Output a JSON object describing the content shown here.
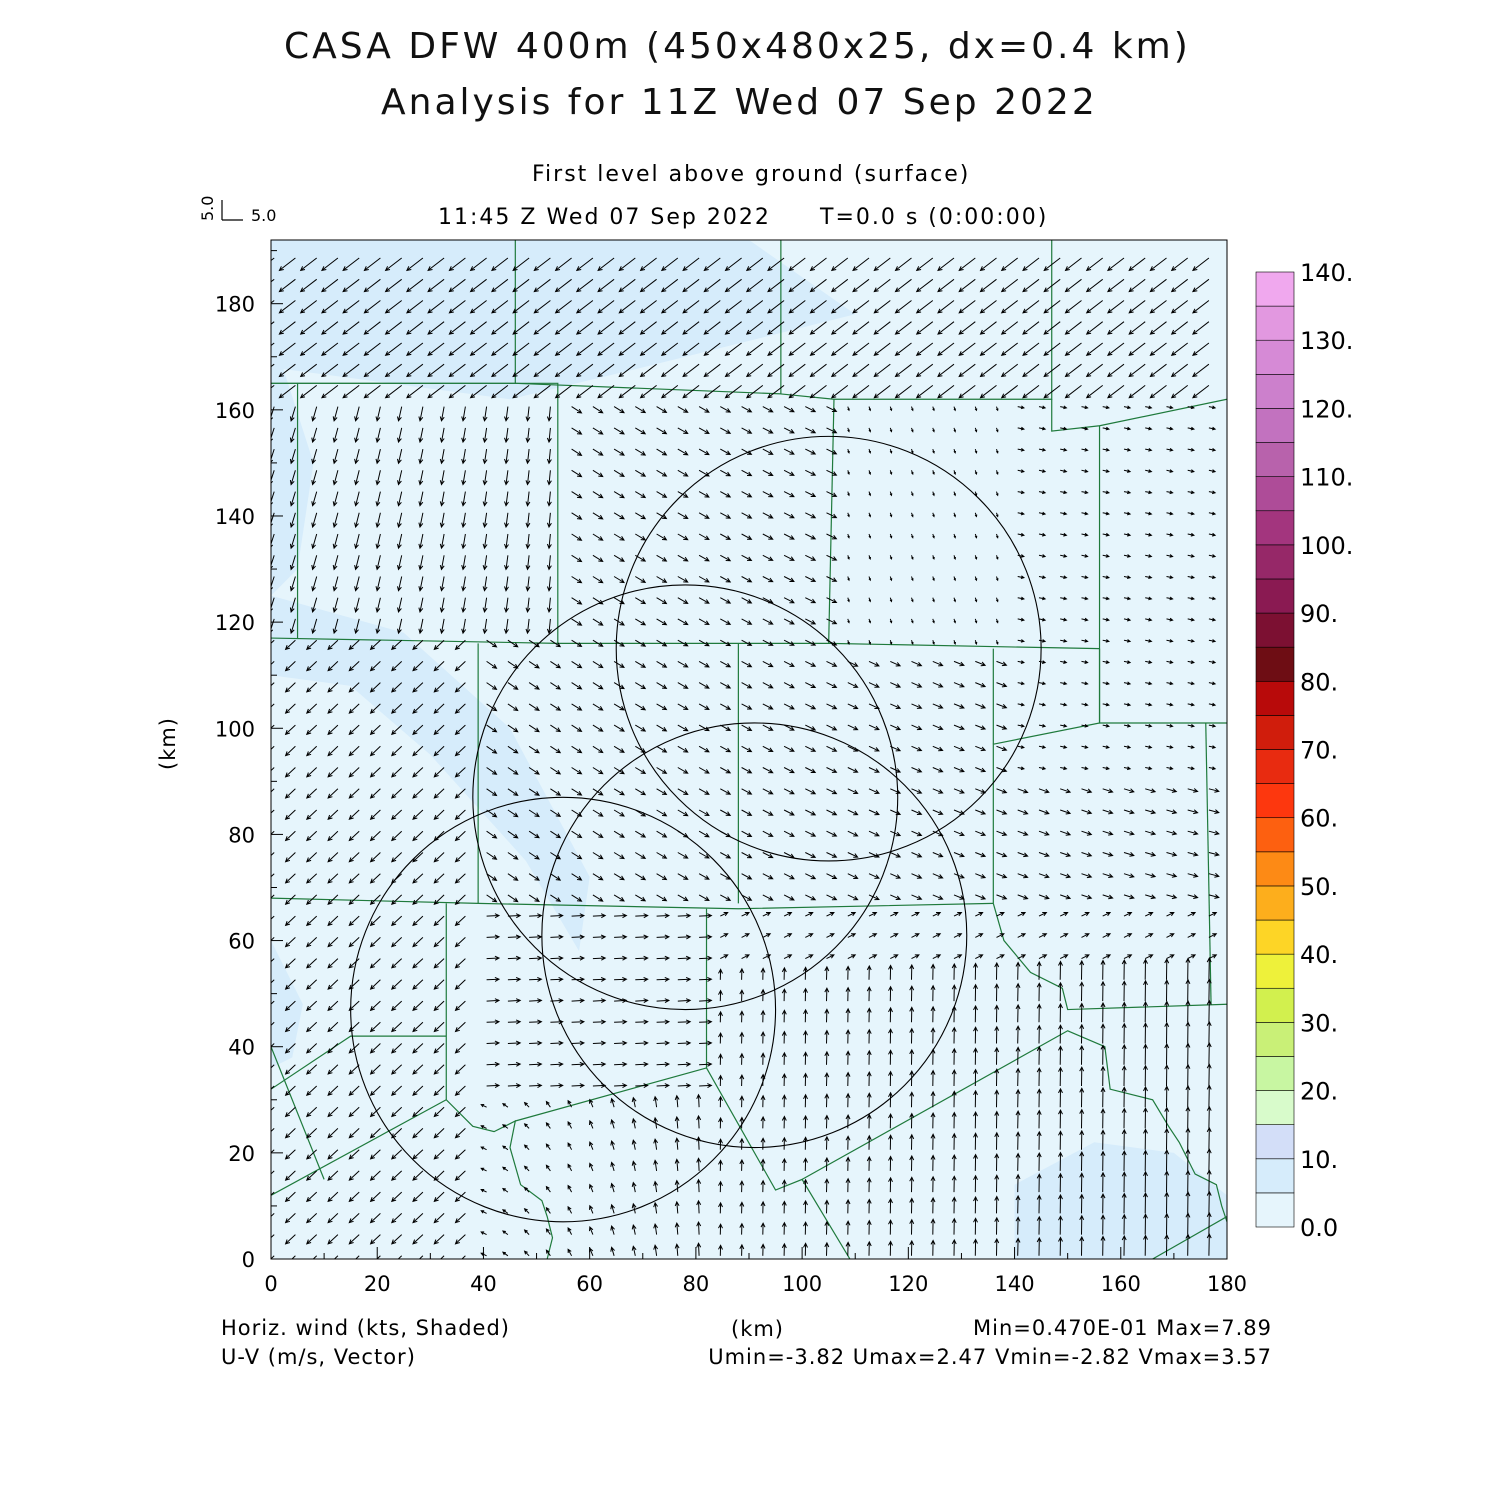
{
  "header": {
    "title_line1": "CASA DFW 400m (450x480x25, dx=0.4 km)",
    "title_line2": "Analysis for 11Z Wed 07 Sep 2022",
    "level": "First level above ground (surface)",
    "time": "11:45 Z Wed 07 Sep 2022",
    "elapsed": "T=0.0 s (0:00:00)",
    "ref_vector_u": "5.0",
    "ref_vector_v": "5.0"
  },
  "footer": {
    "left_line1": "Horiz. wind (kts, Shaded)",
    "left_line2": "U-V (m/s, Vector)",
    "center": "(km)",
    "right_line1": "Min=0.470E-01 Max=7.89",
    "right_line2": "Umin=-3.82 Umax=2.47 Vmin=-2.82 Vmax=3.57"
  },
  "chart_data": {
    "type": "heatmap",
    "xlabel": "(km)",
    "ylabel": "(km)",
    "xlim": [
      0,
      180
    ],
    "ylim": [
      0,
      192
    ],
    "x_ticks": [
      0,
      20,
      40,
      60,
      80,
      100,
      120,
      140,
      160,
      180
    ],
    "y_ticks": [
      0,
      20,
      40,
      60,
      80,
      100,
      120,
      140,
      160,
      180
    ],
    "colorbar": {
      "levels": [
        0,
        5,
        10,
        15,
        20,
        25,
        30,
        35,
        40,
        45,
        50,
        55,
        60,
        65,
        70,
        75,
        80,
        85,
        90,
        95,
        100,
        105,
        110,
        115,
        120,
        125,
        130,
        135,
        140
      ],
      "labels": [
        "0.0",
        "10.",
        "20.",
        "30.",
        "40.",
        "50.",
        "60.",
        "70.",
        "80.",
        "90.",
        "100.",
        "110.",
        "120.",
        "130.",
        "140."
      ],
      "colors": [
        "#e6f5fc",
        "#d6ecfb",
        "#d3def8",
        "#d8fbcb",
        "#c8f6a2",
        "#c9f077",
        "#d2f04e",
        "#eef13a",
        "#fdd526",
        "#fdae1c",
        "#fd8a15",
        "#fd6010",
        "#fd370e",
        "#e82b10",
        "#d01d0c",
        "#b80a0a",
        "#6e0d14",
        "#7c1032",
        "#8a1a52",
        "#962868",
        "#a3357e",
        "#ae4c98",
        "#b862ac",
        "#c272bf",
        "#cc80cc",
        "#d68ad6",
        "#e298e0",
        "#f0a8ee"
      ]
    },
    "field": {
      "name": "Horiz. wind (kts, Shaded)",
      "min": 0.047,
      "max": 7.89,
      "background_color": "#e6f5fc",
      "enhanced_regions": [
        {
          "color": "#d6ecfb",
          "points": [
            [
              0,
              192
            ],
            [
              90,
              192
            ],
            [
              110,
              178
            ],
            [
              70,
              168
            ],
            [
              45,
              162
            ],
            [
              0,
              168
            ]
          ]
        },
        {
          "color": "#d6ecfb",
          "points": [
            [
              0,
              125
            ],
            [
              25,
              118
            ],
            [
              45,
              100
            ],
            [
              60,
              72
            ],
            [
              58,
              58
            ],
            [
              48,
              75
            ],
            [
              30,
              95
            ],
            [
              15,
              108
            ],
            [
              0,
              110
            ]
          ]
        },
        {
          "color": "#d6ecfb",
          "points": [
            [
              0,
              175
            ],
            [
              8,
              150
            ],
            [
              5,
              130
            ],
            [
              0,
              125
            ]
          ]
        },
        {
          "color": "#d6ecfb",
          "points": [
            [
              140,
              0
            ],
            [
              180,
              0
            ],
            [
              180,
              12
            ],
            [
              170,
              20
            ],
            [
              155,
              22
            ],
            [
              140,
              14
            ]
          ]
        },
        {
          "color": "#d6ecfb",
          "points": [
            [
              0,
              60
            ],
            [
              6,
              48
            ],
            [
              4,
              38
            ],
            [
              0,
              36
            ]
          ]
        }
      ]
    },
    "vectors": {
      "name": "U-V (m/s, Vector)",
      "u_min": -3.82,
      "u_max": 2.47,
      "v_min": -2.82,
      "v_max": 3.57,
      "reference_length": 5.0
    },
    "radar_circles": [
      {
        "cx": 105,
        "cy": 115,
        "r": 40
      },
      {
        "cx": 78,
        "cy": 87,
        "r": 40
      },
      {
        "cx": 91,
        "cy": 61,
        "r": 40
      },
      {
        "cx": 55,
        "cy": 47,
        "r": 40
      }
    ],
    "county_lines": [
      [
        [
          0,
          165
        ],
        [
          46,
          165
        ],
        [
          46,
          192
        ]
      ],
      [
        [
          46,
          165
        ],
        [
          96,
          163
        ],
        [
          96,
          192
        ]
      ],
      [
        [
          96,
          163
        ],
        [
          106,
          162
        ],
        [
          147,
          162
        ],
        [
          147,
          192
        ]
      ],
      [
        [
          0,
          165
        ],
        [
          5,
          165
        ],
        [
          5,
          117
        ]
      ],
      [
        [
          5,
          165
        ],
        [
          54,
          165
        ],
        [
          54,
          116
        ]
      ],
      [
        [
          0,
          117
        ],
        [
          54,
          116
        ],
        [
          105,
          116
        ],
        [
          156,
          115
        ]
      ],
      [
        [
          106,
          162
        ],
        [
          105,
          116
        ]
      ],
      [
        [
          147,
          162
        ],
        [
          147,
          156
        ],
        [
          156,
          157
        ],
        [
          180,
          162
        ]
      ],
      [
        [
          156,
          157
        ],
        [
          156,
          101
        ],
        [
          180,
          101
        ]
      ],
      [
        [
          156,
          115
        ],
        [
          156,
          101
        ],
        [
          136,
          97
        ],
        [
          136,
          67
        ]
      ],
      [
        [
          136,
          115
        ],
        [
          136,
          97
        ]
      ],
      [
        [
          39,
          116
        ],
        [
          39,
          67
        ]
      ],
      [
        [
          88,
          116
        ],
        [
          88,
          67
        ]
      ],
      [
        [
          0,
          68
        ],
        [
          39,
          67
        ],
        [
          88,
          66
        ],
        [
          136,
          67
        ]
      ],
      [
        [
          136,
          67
        ],
        [
          138,
          60
        ],
        [
          143,
          54
        ],
        [
          149,
          51
        ],
        [
          150,
          47
        ],
        [
          180,
          48
        ]
      ],
      [
        [
          33,
          67
        ],
        [
          33,
          30
        ],
        [
          38,
          25
        ],
        [
          42,
          24
        ],
        [
          46,
          26
        ],
        [
          45,
          21
        ],
        [
          47,
          14
        ],
        [
          51,
          11
        ],
        [
          52,
          8
        ],
        [
          53,
          4
        ],
        [
          52,
          0
        ]
      ],
      [
        [
          33,
          42
        ],
        [
          15,
          42
        ],
        [
          0,
          32
        ]
      ],
      [
        [
          0,
          12
        ],
        [
          33,
          30
        ]
      ],
      [
        [
          0,
          40
        ],
        [
          10,
          15
        ]
      ],
      [
        [
          46,
          26
        ],
        [
          82,
          36
        ],
        [
          82,
          66
        ]
      ],
      [
        [
          82,
          36
        ],
        [
          95,
          13
        ],
        [
          100,
          15
        ],
        [
          109,
          0
        ]
      ],
      [
        [
          100,
          15
        ],
        [
          150,
          43
        ],
        [
          157,
          40
        ],
        [
          158,
          32
        ],
        [
          166,
          30
        ],
        [
          169,
          25
        ],
        [
          171,
          22
        ],
        [
          174,
          16
        ],
        [
          178,
          14
        ],
        [
          179,
          10
        ],
        [
          180,
          7
        ]
      ],
      [
        [
          176,
          101
        ],
        [
          177,
          48
        ]
      ],
      [
        [
          166,
          0
        ],
        [
          180,
          8
        ]
      ]
    ]
  }
}
